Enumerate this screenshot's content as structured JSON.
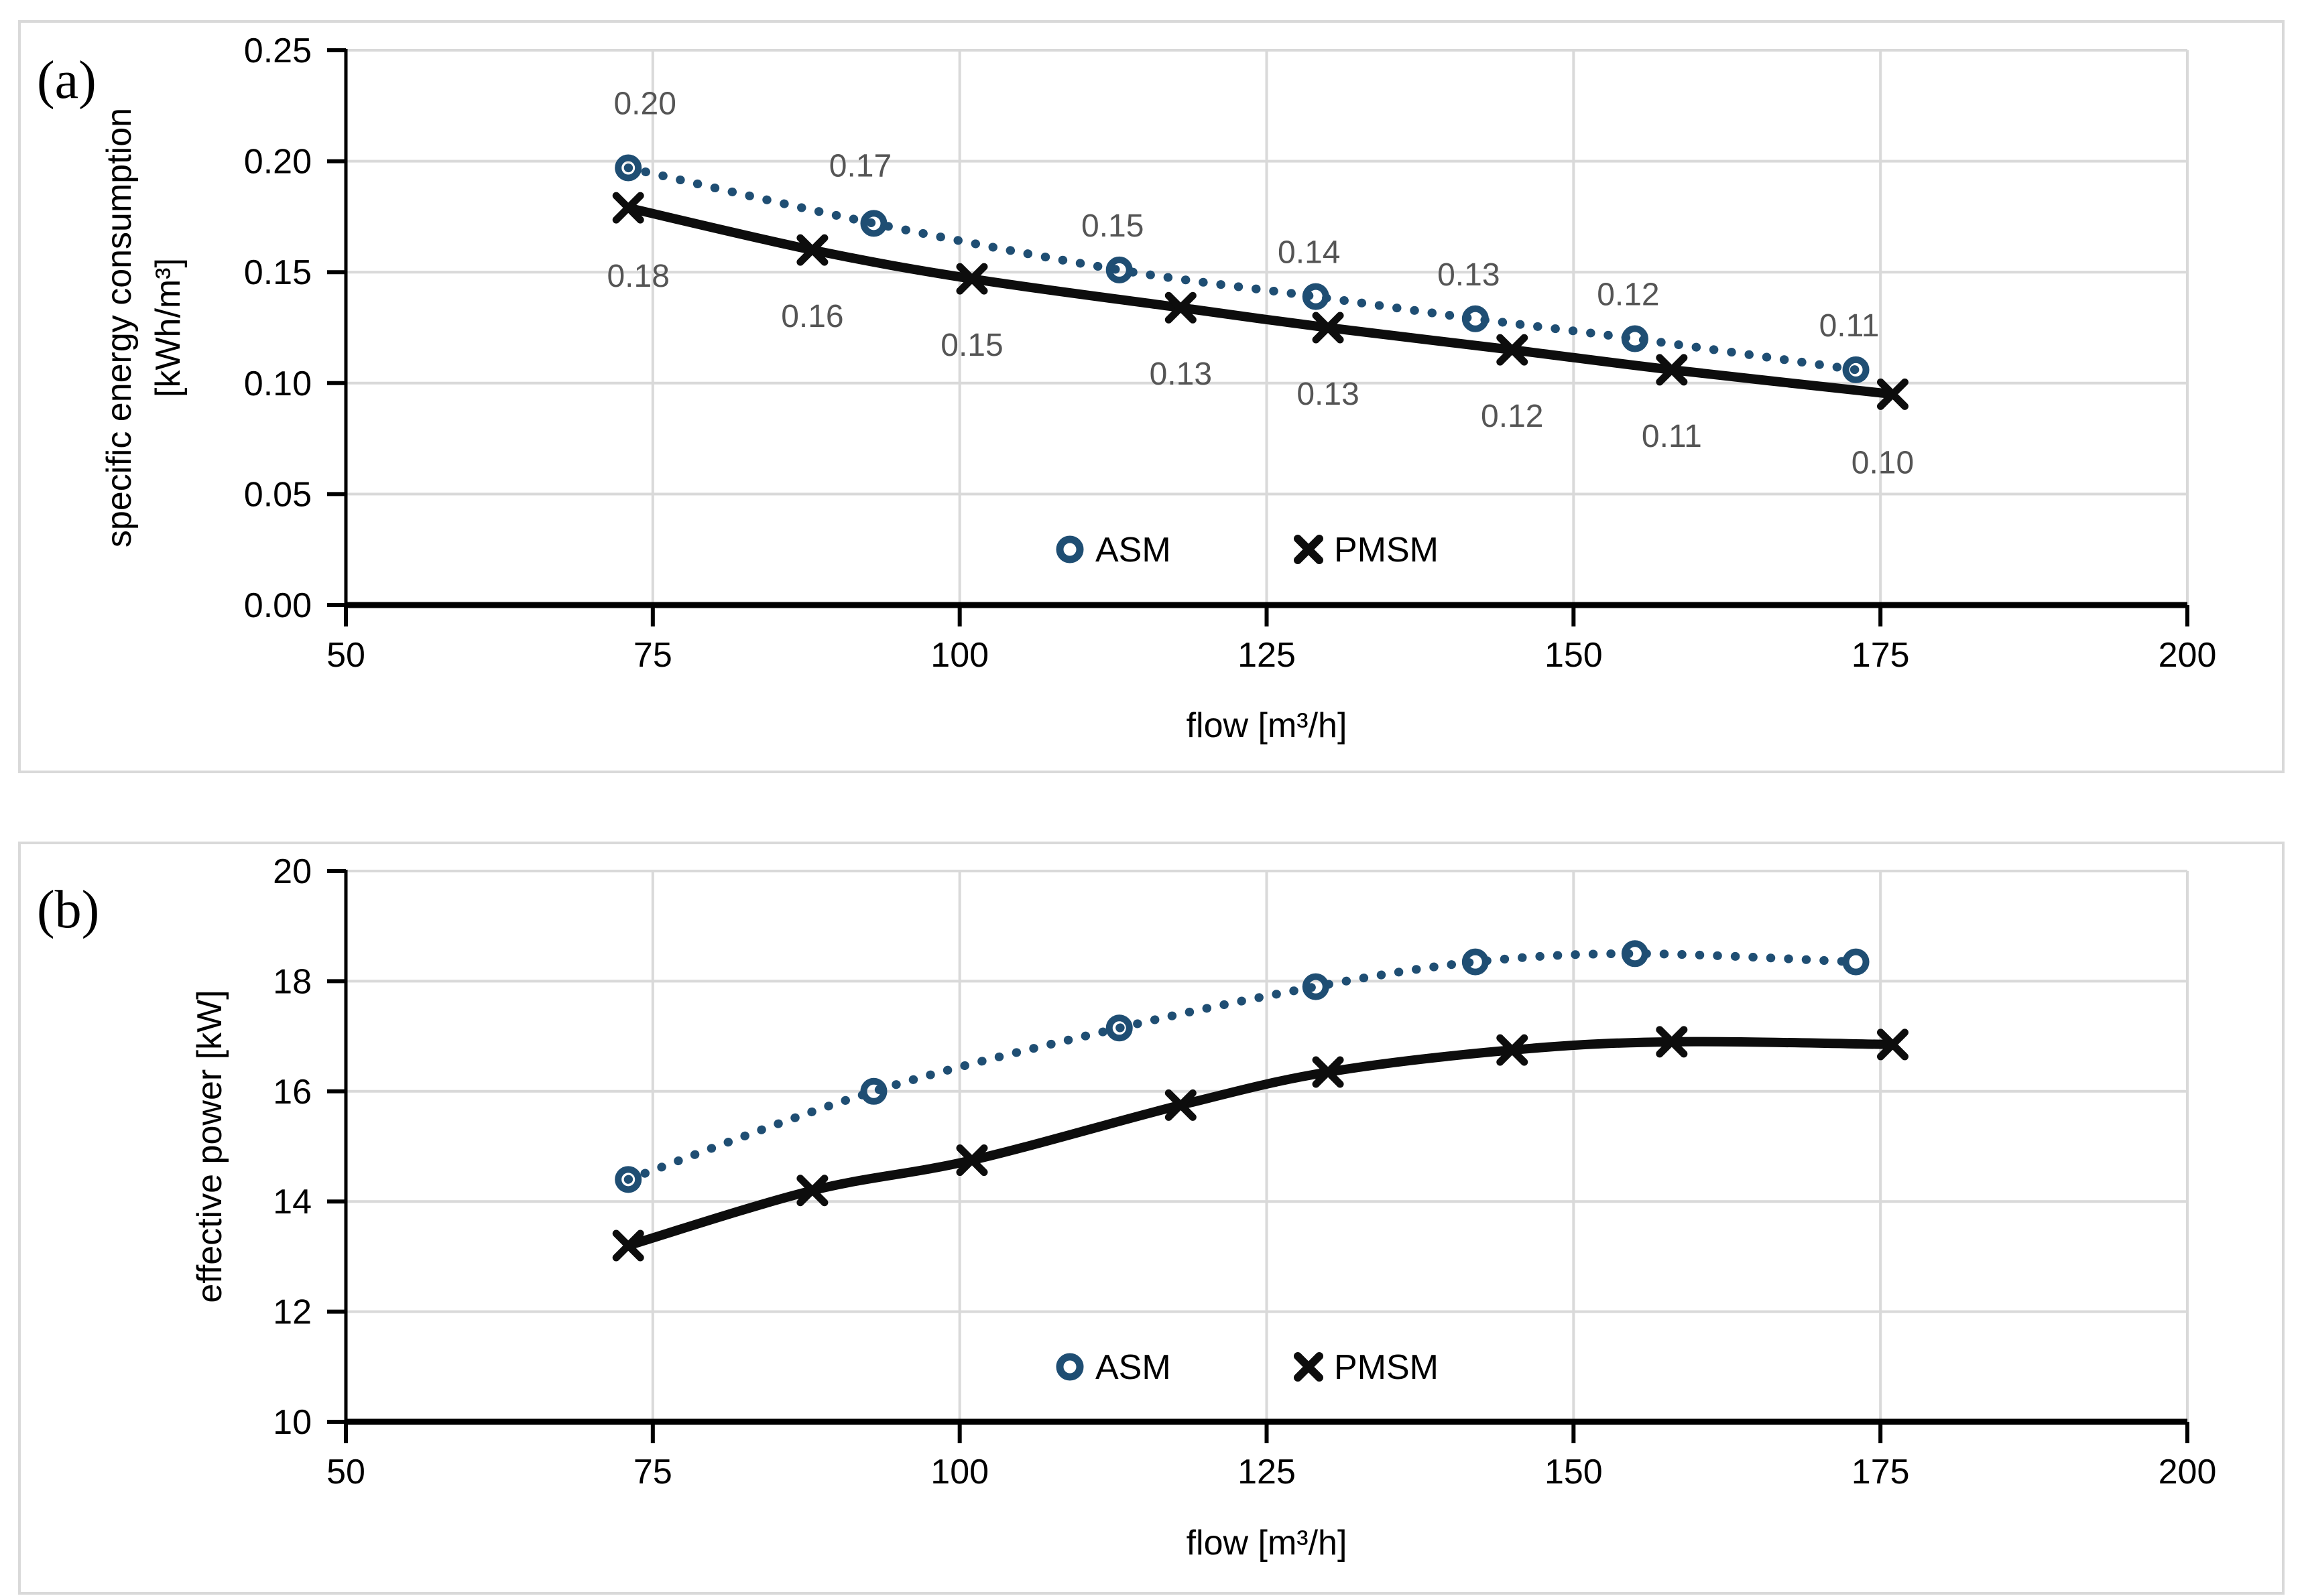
{
  "ui": {
    "background": "#ffffff",
    "panel_border_color": "#d9d9d9",
    "panels": [
      {
        "letter": "(a)"
      },
      {
        "letter": "(b)"
      }
    ]
  },
  "colors": {
    "asm": "#1f4e73",
    "pmsm": "#0d0d0d",
    "grid": "#d9d9d9",
    "axis": "#000000",
    "tick_text": "#000000",
    "data_label": "#555555"
  },
  "chart_data": [
    {
      "id": "a",
      "type": "scatter",
      "panel_letter": "(a)",
      "xlabel": "flow [m³/h]",
      "ylabel_lines": [
        "specific energy consumption",
        "[kWh/m³]"
      ],
      "xlim": [
        50,
        200
      ],
      "ylim": [
        0,
        0.25
      ],
      "x_ticks": [
        50,
        75,
        100,
        125,
        150,
        175,
        200
      ],
      "y_ticks": [
        0,
        0.05,
        0.1,
        0.15,
        0.2,
        0.25
      ],
      "y_tick_labels": [
        "0.00",
        "0.05",
        "0.10",
        "0.15",
        "0.20",
        "0.25"
      ],
      "grid": true,
      "legend_position": "inside-bottom-center",
      "legend": [
        "ASM",
        "PMSM"
      ],
      "series": [
        {
          "name": "ASM",
          "marker": "circle",
          "line_style": "dotted",
          "color": "#1f4e73",
          "x": [
            73,
            93,
            113,
            129,
            142,
            155,
            173
          ],
          "y": [
            0.197,
            0.172,
            0.151,
            0.139,
            0.129,
            0.12,
            0.106
          ],
          "point_labels": [
            "0.20",
            "0.17",
            "0.15",
            "0.14",
            "0.13",
            "0.12",
            "0.11"
          ],
          "label_side": "above"
        },
        {
          "name": "PMSM",
          "marker": "x",
          "line_style": "solid",
          "color": "#0d0d0d",
          "x": [
            73,
            88,
            101,
            118,
            130,
            145,
            158,
            176
          ],
          "y": [
            0.179,
            0.16,
            0.147,
            0.134,
            0.125,
            0.115,
            0.106,
            0.095
          ],
          "point_labels": [
            "0.18",
            "0.16",
            "0.15",
            "0.13",
            "0.13",
            "0.12",
            "0.11",
            "0.10"
          ],
          "label_side": "below"
        }
      ]
    },
    {
      "id": "b",
      "type": "scatter",
      "panel_letter": "(b)",
      "xlabel": "flow [m³/h]",
      "ylabel_lines": [
        "effective power [kW]"
      ],
      "xlim": [
        50,
        200
      ],
      "ylim": [
        10,
        20
      ],
      "x_ticks": [
        50,
        75,
        100,
        125,
        150,
        175,
        200
      ],
      "y_ticks": [
        10,
        12,
        14,
        16,
        18,
        20
      ],
      "y_tick_labels": [
        "10",
        "12",
        "14",
        "16",
        "18",
        "20"
      ],
      "grid": true,
      "legend_position": "inside-bottom-center",
      "legend": [
        "ASM",
        "PMSM"
      ],
      "series": [
        {
          "name": "ASM",
          "marker": "circle",
          "line_style": "dotted",
          "color": "#1f4e73",
          "x": [
            73,
            93,
            113,
            129,
            142,
            155,
            173
          ],
          "y": [
            14.4,
            16.0,
            17.15,
            17.9,
            18.35,
            18.5,
            18.35
          ],
          "point_labels": [],
          "label_side": "above"
        },
        {
          "name": "PMSM",
          "marker": "x",
          "line_style": "solid",
          "color": "#0d0d0d",
          "x": [
            73,
            88,
            101,
            118,
            130,
            145,
            158,
            176
          ],
          "y": [
            13.2,
            14.2,
            14.75,
            15.75,
            16.35,
            16.75,
            16.9,
            16.85
          ],
          "point_labels": [],
          "label_side": "below"
        }
      ]
    }
  ]
}
